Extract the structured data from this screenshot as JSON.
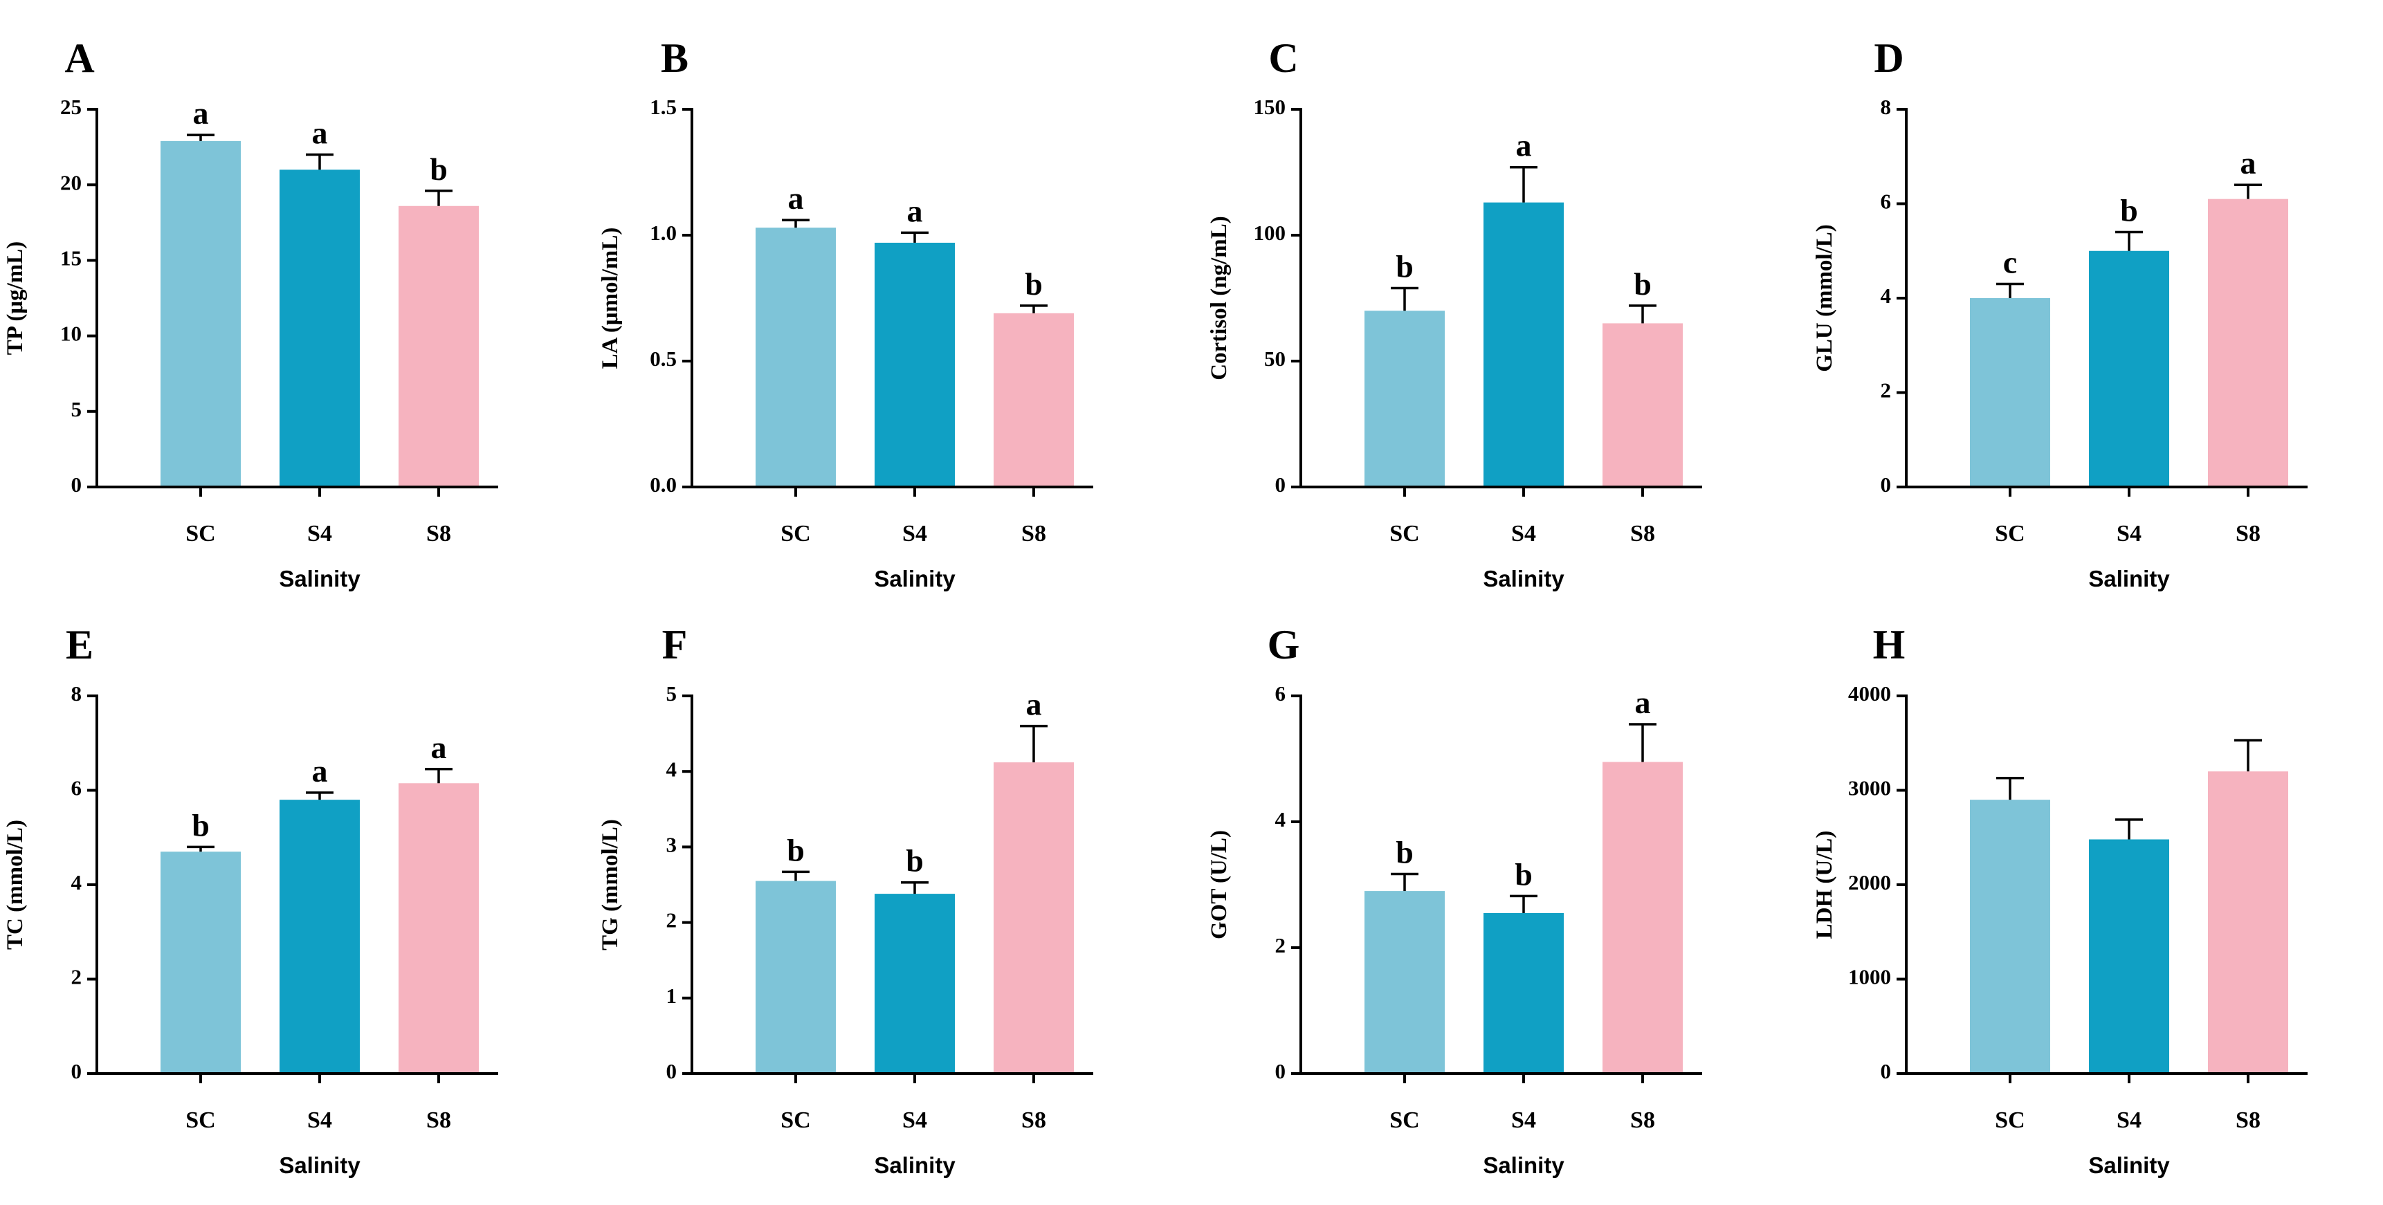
{
  "chart_data": [
    {
      "panel": "A",
      "type": "bar",
      "categories": [
        "SC",
        "S4",
        "S8"
      ],
      "values": [
        22.9,
        21.0,
        18.6
      ],
      "errors": [
        0.4,
        1.0,
        1.0
      ],
      "letters": [
        "a",
        "a",
        "b"
      ],
      "ylabel": "TP (μg/mL)",
      "xlabel": "Salinity",
      "ylim": [
        0,
        25
      ],
      "yticks": [
        0,
        5,
        10,
        15,
        20,
        25
      ],
      "ytick_labels": [
        "0",
        "5",
        "10",
        "15",
        "20",
        "25"
      ]
    },
    {
      "panel": "B",
      "type": "bar",
      "categories": [
        "SC",
        "S4",
        "S8"
      ],
      "values": [
        1.03,
        0.97,
        0.69
      ],
      "errors": [
        0.03,
        0.04,
        0.03
      ],
      "letters": [
        "a",
        "a",
        "b"
      ],
      "ylabel": "LA (μmol/mL)",
      "xlabel": "Salinity",
      "ylim": [
        0,
        1.5
      ],
      "yticks": [
        0,
        0.5,
        1.0,
        1.5
      ],
      "ytick_labels": [
        "0.0",
        "0.5",
        "1.0",
        "1.5"
      ]
    },
    {
      "panel": "C",
      "type": "bar",
      "categories": [
        "SC",
        "S4",
        "S8"
      ],
      "values": [
        70,
        113,
        65
      ],
      "errors": [
        9,
        14,
        7
      ],
      "letters": [
        "b",
        "a",
        "b"
      ],
      "ylabel": "Cortisol (ng/mL)",
      "xlabel": "Salinity",
      "ylim": [
        0,
        150
      ],
      "yticks": [
        0,
        50,
        100,
        150
      ],
      "ytick_labels": [
        "0",
        "50",
        "100",
        "150"
      ]
    },
    {
      "panel": "D",
      "type": "bar",
      "categories": [
        "SC",
        "S4",
        "S8"
      ],
      "values": [
        4.0,
        5.0,
        6.1
      ],
      "errors": [
        0.3,
        0.4,
        0.3
      ],
      "letters": [
        "c",
        "b",
        "a"
      ],
      "ylabel": "GLU (mmol/L)",
      "xlabel": "Salinity",
      "ylim": [
        0,
        8
      ],
      "yticks": [
        0,
        2,
        4,
        6,
        8
      ],
      "ytick_labels": [
        "0",
        "2",
        "4",
        "6",
        "8"
      ]
    },
    {
      "panel": "E",
      "type": "bar",
      "categories": [
        "SC",
        "S4",
        "S8"
      ],
      "values": [
        4.7,
        5.8,
        6.15
      ],
      "errors": [
        0.1,
        0.15,
        0.3
      ],
      "letters": [
        "b",
        "a",
        "a"
      ],
      "ylabel": "TC (mmol/L)",
      "xlabel": "Salinity",
      "ylim": [
        0,
        8
      ],
      "yticks": [
        0,
        2,
        4,
        6,
        8
      ],
      "ytick_labels": [
        "0",
        "2",
        "4",
        "6",
        "8"
      ]
    },
    {
      "panel": "F",
      "type": "bar",
      "categories": [
        "SC",
        "S4",
        "S8"
      ],
      "values": [
        2.55,
        2.38,
        4.12
      ],
      "errors": [
        0.12,
        0.15,
        0.48
      ],
      "letters": [
        "b",
        "b",
        "a"
      ],
      "ylabel": "TG (mmol/L)",
      "xlabel": "Salinity",
      "ylim": [
        0,
        5
      ],
      "yticks": [
        0,
        1,
        2,
        3,
        4,
        5
      ],
      "ytick_labels": [
        "0",
        "1",
        "2",
        "3",
        "4",
        "5"
      ]
    },
    {
      "panel": "G",
      "type": "bar",
      "categories": [
        "SC",
        "S4",
        "S8"
      ],
      "values": [
        2.9,
        2.55,
        4.95
      ],
      "errors": [
        0.27,
        0.27,
        0.6
      ],
      "letters": [
        "b",
        "b",
        "a"
      ],
      "ylabel": "GOT (U/L)",
      "xlabel": "Salinity",
      "ylim": [
        0,
        6
      ],
      "yticks": [
        0,
        2,
        4,
        6
      ],
      "ytick_labels": [
        "0",
        "2",
        "4",
        "6"
      ]
    },
    {
      "panel": "H",
      "type": "bar",
      "categories": [
        "SC",
        "S4",
        "S8"
      ],
      "values": [
        2900,
        2480,
        3200
      ],
      "errors": [
        230,
        210,
        330
      ],
      "letters": [
        "",
        "",
        ""
      ],
      "ylabel": "LDH (U/L)",
      "xlabel": "Salinity",
      "ylim": [
        0,
        4000
      ],
      "yticks": [
        0,
        1000,
        2000,
        3000,
        4000
      ],
      "ytick_labels": [
        "0",
        "1000",
        "2000",
        "3000",
        "4000"
      ]
    }
  ],
  "colors": {
    "SC": "#7ec4d8",
    "S4": "#10a0c4",
    "S8": "#f6b3bf",
    "axis": "#000000"
  }
}
